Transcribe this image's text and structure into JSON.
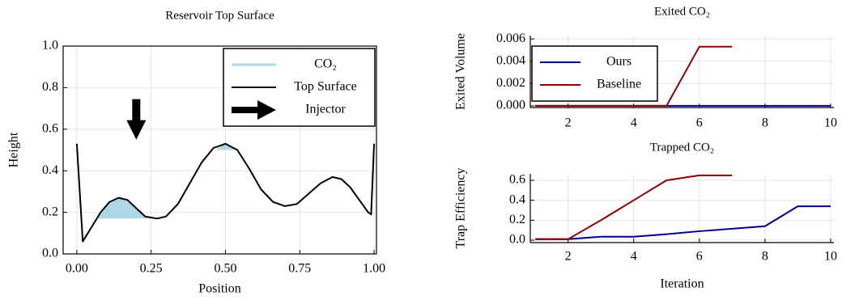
{
  "chart_data": [
    {
      "type": "line",
      "title": "Reservoir Top Surface",
      "xlabel": "Position",
      "ylabel": "Height",
      "xlim": [
        -0.046,
        1.008
      ],
      "ylim": [
        0,
        1
      ],
      "xticks": [
        {
          "value": 0,
          "label": "0.00"
        },
        {
          "value": 0.25,
          "label": "0.25"
        },
        {
          "value": 0.5,
          "label": "0.50"
        },
        {
          "value": 0.75,
          "label": "0.75"
        },
        {
          "value": 1,
          "label": "1.00"
        }
      ],
      "yticks": [
        {
          "value": 0,
          "label": "0.0"
        },
        {
          "value": 0.2,
          "label": "0.2"
        },
        {
          "value": 0.4,
          "label": "0.4"
        },
        {
          "value": 0.6,
          "label": "0.6"
        },
        {
          "value": 0.8,
          "label": "0.8"
        },
        {
          "value": 1,
          "label": "1.0"
        }
      ],
      "grid": true,
      "box": true,
      "legend": "upper right",
      "series": [
        {
          "name": "CO₂",
          "color": "#add8e6",
          "style": "fill",
          "regions": [
            {
              "x": [
                0.065,
                0.08,
                0.11,
                0.14,
                0.17,
                0.2,
                0.23,
                0.26
              ],
              "values": [
                0.17,
                0.2,
                0.25,
                0.27,
                0.26,
                0.22,
                0.18,
                0.17
              ],
              "level": 0.17
            },
            {
              "x": [
                0.47,
                0.5,
                0.53
              ],
              "values": [
                0.505,
                0.53,
                0.505
              ],
              "level": 0.5
            }
          ]
        },
        {
          "name": "Top Surface",
          "color": "#000000",
          "style": "line",
          "x": [
            0,
            0.02,
            0.05,
            0.08,
            0.11,
            0.14,
            0.17,
            0.2,
            0.23,
            0.27,
            0.3,
            0.34,
            0.38,
            0.42,
            0.46,
            0.5,
            0.54,
            0.58,
            0.62,
            0.66,
            0.7,
            0.74,
            0.78,
            0.82,
            0.86,
            0.89,
            0.92,
            0.95,
            0.98,
            0.99,
            1.0
          ],
          "values": [
            0.53,
            0.06,
            0.13,
            0.2,
            0.25,
            0.27,
            0.26,
            0.22,
            0.18,
            0.17,
            0.18,
            0.24,
            0.34,
            0.44,
            0.51,
            0.53,
            0.5,
            0.41,
            0.31,
            0.25,
            0.23,
            0.24,
            0.29,
            0.34,
            0.37,
            0.36,
            0.32,
            0.26,
            0.2,
            0.19,
            0.53
          ]
        },
        {
          "name": "Injector",
          "color": "#000000",
          "style": "arrow",
          "x": [
            0.2
          ],
          "values": [
            0.55
          ]
        }
      ]
    },
    {
      "type": "line",
      "title": "Exited CO₂",
      "ylabel": "Exited Volume",
      "xlim": [
        0.85,
        10.1
      ],
      "ylim": [
        -0.00015,
        0.0063
      ],
      "xticks": [
        2,
        4,
        6,
        8,
        10
      ],
      "yticks": [
        {
          "value": 0,
          "label": "0.000"
        },
        {
          "value": 0.002,
          "label": "0.002"
        },
        {
          "value": 0.004,
          "label": "0.004"
        },
        {
          "value": 0.006,
          "label": "0.006"
        }
      ],
      "grid": true,
      "legend": "upper left",
      "series": [
        {
          "name": "Ours",
          "color": "#00008b",
          "style": "line",
          "x": [
            1,
            2,
            3,
            4,
            5,
            6,
            7,
            8,
            9,
            10
          ],
          "values": [
            0,
            0,
            0,
            0,
            0,
            0,
            0,
            0,
            0,
            0
          ]
        },
        {
          "name": "Baseline",
          "color": "#8b0000",
          "style": "line",
          "x": [
            1,
            2,
            3,
            4,
            5,
            6,
            7
          ],
          "values": [
            0,
            0,
            0,
            0,
            0,
            0.0053,
            0.0053
          ]
        }
      ]
    },
    {
      "type": "line",
      "title": "Trapped CO₂",
      "xlabel": "Iteration",
      "ylabel": "Trap Efficiency",
      "xlim": [
        0.85,
        10.1
      ],
      "ylim": [
        -0.024,
        0.665
      ],
      "xticks": [
        2,
        4,
        6,
        8,
        10
      ],
      "yticks": [
        {
          "value": 0,
          "label": "0.0"
        },
        {
          "value": 0.2,
          "label": "0.2"
        },
        {
          "value": 0.4,
          "label": "0.4"
        },
        {
          "value": 0.6,
          "label": "0.6"
        }
      ],
      "grid": true,
      "series": [
        {
          "color": "#00008b",
          "style": "line",
          "x": [
            1,
            2,
            3,
            4,
            5,
            6,
            7,
            8,
            9,
            10
          ],
          "values": [
            0.01,
            0.01,
            0.035,
            0.035,
            0.06,
            0.09,
            0.115,
            0.14,
            0.34,
            0.34
          ]
        },
        {
          "color": "#8b0000",
          "style": "line",
          "x": [
            1,
            2,
            3,
            4,
            5,
            6,
            7
          ],
          "values": [
            0.01,
            0.01,
            0.2,
            0.4,
            0.6,
            0.65,
            0.65
          ]
        }
      ]
    }
  ]
}
